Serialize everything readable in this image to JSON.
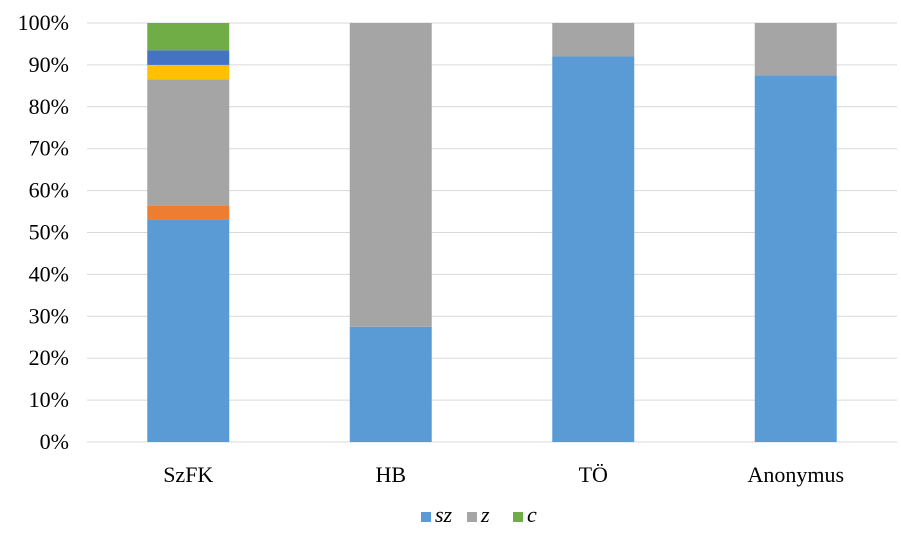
{
  "chart_data": {
    "type": "bar",
    "stacked": true,
    "normalized": true,
    "categories": [
      "SzFK",
      "HB",
      "TÖ",
      "Anonymus"
    ],
    "ylim": [
      0,
      100
    ],
    "yticks": [
      "0%",
      "10%",
      "20%",
      "30%",
      "40%",
      "50%",
      "60%",
      "70%",
      "80%",
      "90%",
      "100%"
    ],
    "grid": true,
    "legend_position": "bottom",
    "series": [
      {
        "name": "sz",
        "color": "#5B9BD5",
        "values": [
          53,
          27.5,
          92,
          87.5
        ]
      },
      {
        "color": "#ED7D31",
        "values": [
          3.5,
          0,
          0,
          0
        ]
      },
      {
        "name": "z",
        "color": "#A5A5A5",
        "values": [
          30,
          72.5,
          8,
          12.5
        ]
      },
      {
        "color": "#FFC000",
        "values": [
          3.5,
          0,
          0,
          0
        ]
      },
      {
        "color": "#4472C4",
        "values": [
          3.5,
          0,
          0,
          0
        ]
      },
      {
        "name": "c",
        "color": "#70AD47",
        "values": [
          6.5,
          0,
          0,
          0
        ]
      }
    ]
  }
}
